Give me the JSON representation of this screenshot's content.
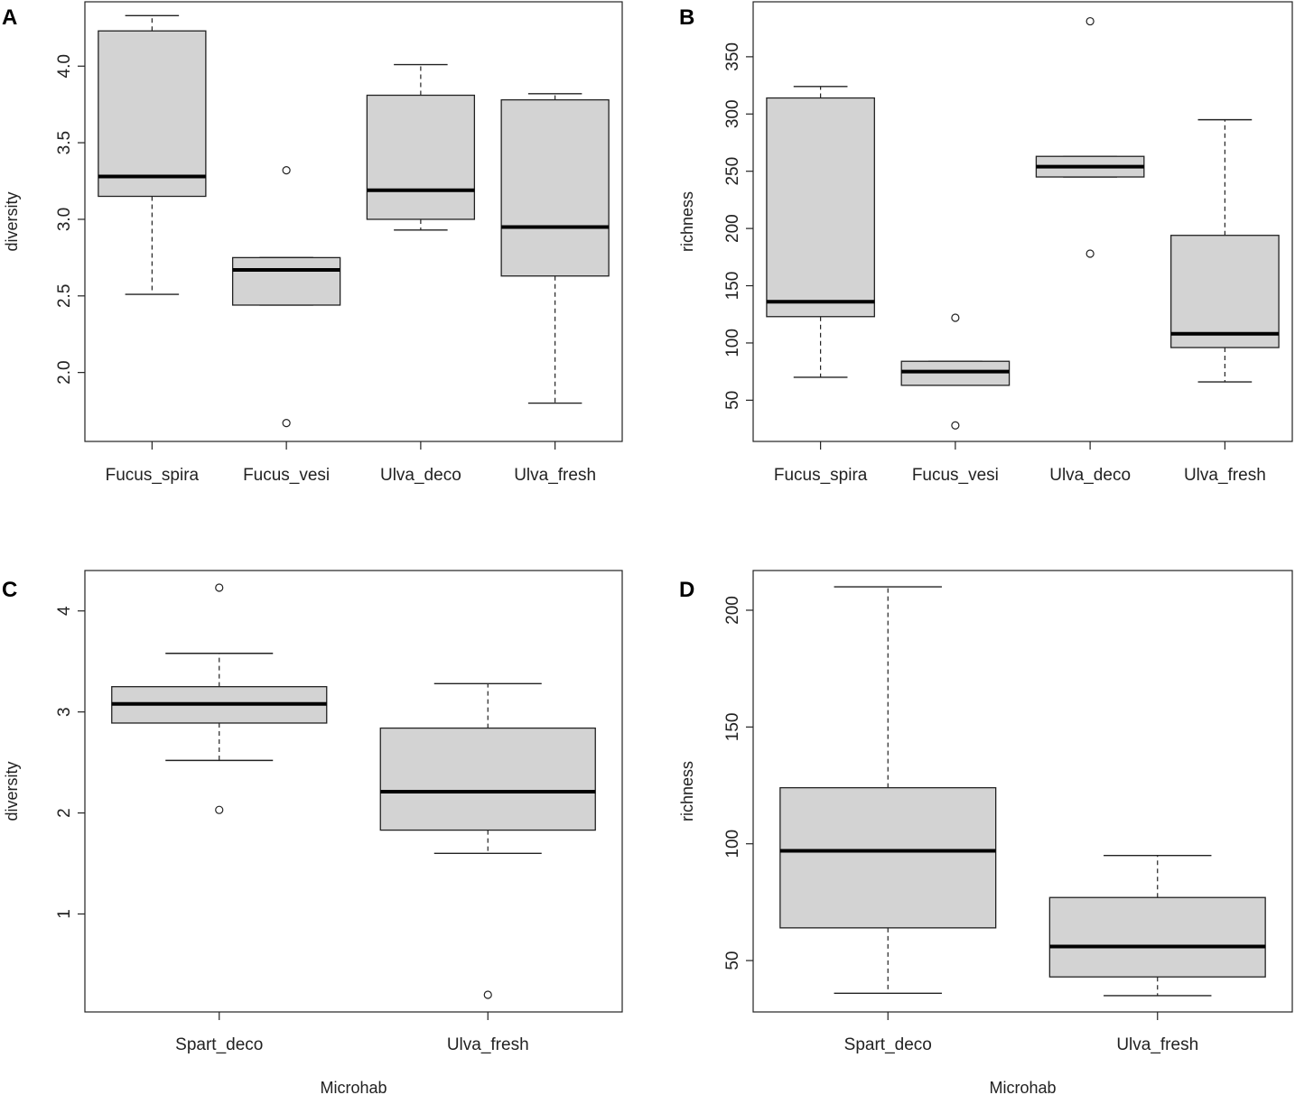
{
  "chart_data": [
    {
      "panel": "A",
      "type": "boxplot",
      "ylabel": "diversity",
      "xlabel": "",
      "ylim": [
        1.55,
        4.42
      ],
      "yticks": [
        "2.0",
        "2.5",
        "3.0",
        "3.5",
        "4.0"
      ],
      "categories": [
        "Fucus_spira",
        "Fucus_vesi",
        "Ulva_deco",
        "Ulva_fresh"
      ],
      "boxes": [
        {
          "whisker_low": 2.51,
          "q1": 3.15,
          "median": 3.28,
          "q3": 4.23,
          "whisker_high": 4.33,
          "outliers": []
        },
        {
          "whisker_low": 2.44,
          "q1": 2.44,
          "median": 2.67,
          "q3": 2.75,
          "whisker_high": 2.75,
          "outliers": [
            3.32,
            1.67
          ]
        },
        {
          "whisker_low": 2.93,
          "q1": 3.0,
          "median": 3.19,
          "q3": 3.81,
          "whisker_high": 4.01,
          "outliers": []
        },
        {
          "whisker_low": 1.8,
          "q1": 2.63,
          "median": 2.95,
          "q3": 3.78,
          "whisker_high": 3.82,
          "outliers": []
        }
      ]
    },
    {
      "panel": "B",
      "type": "boxplot",
      "ylabel": "richness",
      "xlabel": "",
      "ylim": [
        14,
        398
      ],
      "yticks": [
        "50",
        "100",
        "150",
        "200",
        "250",
        "300",
        "350"
      ],
      "categories": [
        "Fucus_spira",
        "Fucus_vesi",
        "Ulva_deco",
        "Ulva_fresh"
      ],
      "boxes": [
        {
          "whisker_low": 70,
          "q1": 123,
          "median": 136,
          "q3": 314,
          "whisker_high": 324,
          "outliers": []
        },
        {
          "whisker_low": 63,
          "q1": 63,
          "median": 75,
          "q3": 84,
          "whisker_high": 84,
          "outliers": [
            122,
            28
          ]
        },
        {
          "whisker_low": 245,
          "q1": 245,
          "median": 254,
          "q3": 263,
          "whisker_high": 263,
          "outliers": [
            381,
            178
          ]
        },
        {
          "whisker_low": 66,
          "q1": 96,
          "median": 108,
          "q3": 194,
          "whisker_high": 295,
          "outliers": []
        }
      ]
    },
    {
      "panel": "C",
      "type": "boxplot",
      "ylabel": "diversity",
      "xlabel": "Microhab",
      "ylim": [
        0.03,
        4.4
      ],
      "yticks": [
        "1",
        "2",
        "3",
        "4"
      ],
      "categories": [
        "Spart_deco",
        "Ulva_fresh"
      ],
      "boxes": [
        {
          "whisker_low": 2.52,
          "q1": 2.89,
          "median": 3.08,
          "q3": 3.25,
          "whisker_high": 3.58,
          "outliers": [
            4.23,
            2.03
          ]
        },
        {
          "whisker_low": 1.6,
          "q1": 1.83,
          "median": 2.21,
          "q3": 2.84,
          "whisker_high": 3.28,
          "outliers": [
            0.2
          ]
        }
      ]
    },
    {
      "panel": "D",
      "type": "boxplot",
      "ylabel": "richness",
      "xlabel": "Microhab",
      "ylim": [
        28,
        217
      ],
      "yticks": [
        "50",
        "100",
        "150",
        "200"
      ],
      "categories": [
        "Spart_deco",
        "Ulva_fresh"
      ],
      "boxes": [
        {
          "whisker_low": 36,
          "q1": 64,
          "median": 97,
          "q3": 124,
          "whisker_high": 210,
          "outliers": []
        },
        {
          "whisker_low": 35,
          "q1": 43,
          "median": 56,
          "q3": 77,
          "whisker_high": 95,
          "outliers": []
        }
      ]
    }
  ]
}
